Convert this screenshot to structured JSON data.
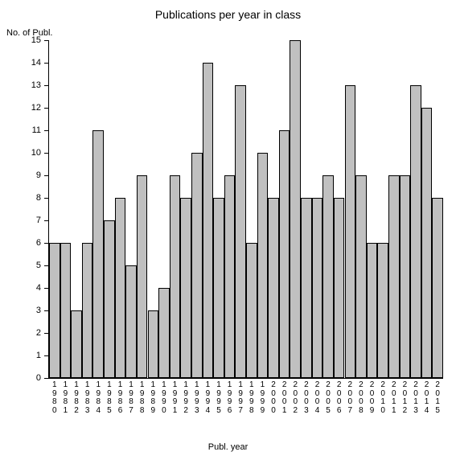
{
  "chart": {
    "type": "bar",
    "title": "Publications per year in class",
    "title_fontsize": 14,
    "y_axis_label": "No. of Publ.",
    "x_axis_label": "Publ. year",
    "label_fontsize": 11,
    "categories": [
      "1980",
      "1981",
      "1982",
      "1983",
      "1984",
      "1985",
      "1986",
      "1987",
      "1988",
      "1989",
      "1990",
      "1991",
      "1992",
      "1993",
      "1994",
      "1995",
      "1996",
      "1997",
      "1998",
      "1999",
      "2000",
      "2001",
      "2002",
      "2003",
      "2004",
      "2005",
      "2006",
      "2007",
      "2008",
      "2009",
      "2010",
      "2011",
      "2012",
      "2013",
      "2014",
      "2015"
    ],
    "values": [
      6,
      6,
      3,
      6,
      11,
      7,
      8,
      5,
      9,
      3,
      4,
      9,
      8,
      10,
      14,
      8,
      9,
      13,
      6,
      10,
      8,
      11,
      15,
      8,
      8,
      9,
      8,
      13,
      9,
      6,
      6,
      9,
      9,
      13,
      12,
      8
    ],
    "ylim": [
      0,
      15
    ],
    "ytick_step": 1,
    "bar_color": "#c0c0c0",
    "bar_border_color": "#000000",
    "background_color": "#ffffff",
    "axis_color": "#000000",
    "tick_fontsize": 11
  }
}
